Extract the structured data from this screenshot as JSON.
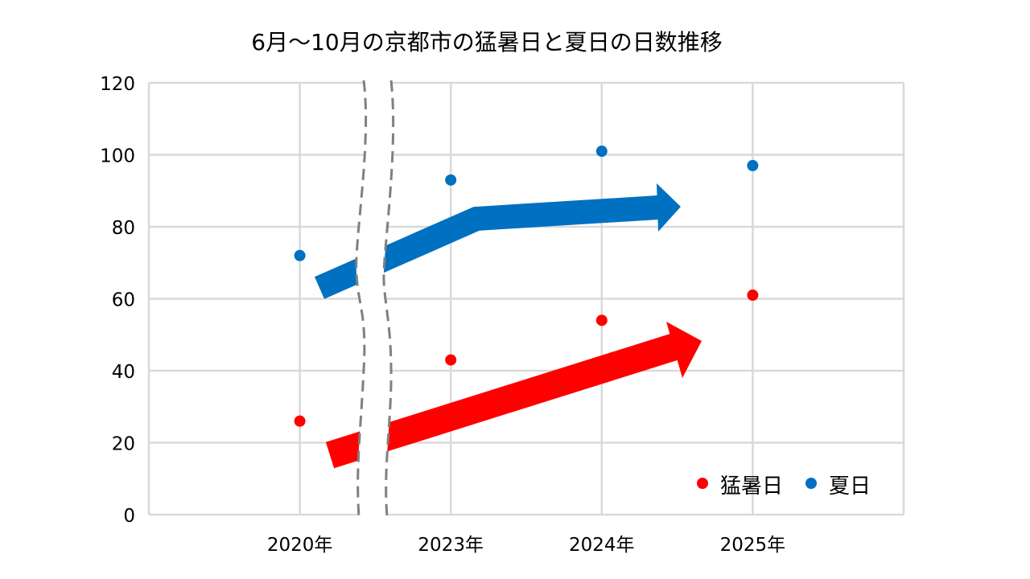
{
  "chart_data": {
    "type": "scatter",
    "title": "6月～10月の京都市の猛暑日と夏日の日数推移",
    "xlabel": "",
    "ylabel": "",
    "categories": [
      "2020年",
      "2023年",
      "2024年",
      "2025年"
    ],
    "ylim": [
      0,
      120
    ],
    "yticks": [
      0,
      20,
      40,
      60,
      80,
      100,
      120
    ],
    "ytick_labels": [
      "0",
      "20",
      "40",
      "60",
      "80",
      "100",
      "120"
    ],
    "grid": true,
    "legend_position": "bottom-right",
    "axis_break": "between 2020年 and 2023年",
    "series": [
      {
        "name": "猛暑日",
        "color": "#ff0000",
        "values": [
          26,
          43,
          54,
          61
        ]
      },
      {
        "name": "夏日",
        "color": "#0070c0",
        "values": [
          72,
          93,
          101,
          97
        ]
      }
    ],
    "annotations": [
      {
        "type": "trend-arrow",
        "series": "猛暑日",
        "direction": "up"
      },
      {
        "type": "trend-arrow",
        "series": "夏日",
        "direction": "up"
      }
    ]
  }
}
